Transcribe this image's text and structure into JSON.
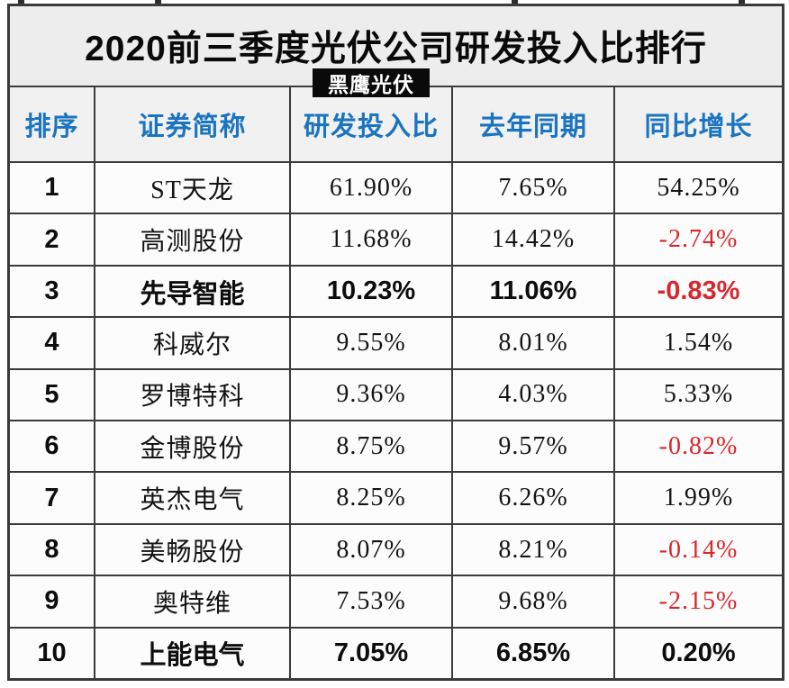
{
  "title": "2020前三季度光伏公司研发投入比排行",
  "watermark_badge": "黑鹰光伏",
  "colors": {
    "header_text": "#1b74c0",
    "negative_value": "#d8262c",
    "value_text": "#141414",
    "border": "#3a3a3a",
    "badge_bg": "#0a0a0a",
    "title_bg": "#ededed"
  },
  "chart_data": {
    "type": "table",
    "title": "2020前三季度光伏公司研发投入比排行",
    "columns": [
      "排序",
      "证券简称",
      "研发投入比",
      "去年同期",
      "同比增长"
    ],
    "rows": [
      {
        "rank": "1",
        "name": "ST天龙",
        "rd_ratio": "61.90%",
        "prev_year": "7.65%",
        "yoy_growth": "54.25%",
        "growth_negative": false,
        "bold": false
      },
      {
        "rank": "2",
        "name": "高测股份",
        "rd_ratio": "11.68%",
        "prev_year": "14.42%",
        "yoy_growth": "-2.74%",
        "growth_negative": true,
        "bold": false
      },
      {
        "rank": "3",
        "name": "先导智能",
        "rd_ratio": "10.23%",
        "prev_year": "11.06%",
        "yoy_growth": "-0.83%",
        "growth_negative": true,
        "bold": true
      },
      {
        "rank": "4",
        "name": "科威尔",
        "rd_ratio": "9.55%",
        "prev_year": "8.01%",
        "yoy_growth": "1.54%",
        "growth_negative": false,
        "bold": false
      },
      {
        "rank": "5",
        "name": "罗博特科",
        "rd_ratio": "9.36%",
        "prev_year": "4.03%",
        "yoy_growth": "5.33%",
        "growth_negative": false,
        "bold": false
      },
      {
        "rank": "6",
        "name": "金博股份",
        "rd_ratio": "8.75%",
        "prev_year": "9.57%",
        "yoy_growth": "-0.82%",
        "growth_negative": true,
        "bold": false
      },
      {
        "rank": "7",
        "name": "英杰电气",
        "rd_ratio": "8.25%",
        "prev_year": "6.26%",
        "yoy_growth": "1.99%",
        "growth_negative": false,
        "bold": false
      },
      {
        "rank": "8",
        "name": "美畅股份",
        "rd_ratio": "8.07%",
        "prev_year": "8.21%",
        "yoy_growth": "-0.14%",
        "growth_negative": true,
        "bold": false
      },
      {
        "rank": "9",
        "name": "奥特维",
        "rd_ratio": "7.53%",
        "prev_year": "9.68%",
        "yoy_growth": "-2.15%",
        "growth_negative": true,
        "bold": false
      },
      {
        "rank": "10",
        "name": "上能电气",
        "rd_ratio": "7.05%",
        "prev_year": "6.85%",
        "yoy_growth": "0.20%",
        "growth_negative": false,
        "bold": true
      }
    ]
  }
}
